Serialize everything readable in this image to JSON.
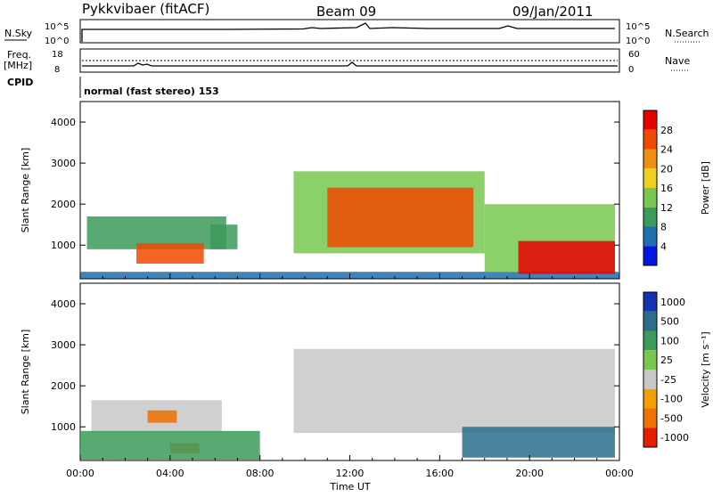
{
  "header": {
    "station": "Pykkvibaer (fitACF)",
    "beam": "Beam 09",
    "date": "09/Jan/2011"
  },
  "status_panels": {
    "nsky_label": "N.Sky",
    "nsky_ticks": [
      "10^5",
      "10^0"
    ],
    "nsearch_label": "N.Search",
    "nsearch_ticks": [
      "10^5",
      "10^0"
    ],
    "freq_label": "Freq.",
    "freq_unit": "[MHz]",
    "freq_ticks": [
      "18",
      "8"
    ],
    "nave_label": "Nave",
    "nave_ticks": [
      "60",
      "0"
    ],
    "cpid_label": "CPID",
    "cpid_value": "normal (fast stereo) 153"
  },
  "x_axis": {
    "label": "Time UT",
    "ticks": [
      "00:00",
      "04:00",
      "08:00",
      "12:00",
      "16:00",
      "20:00",
      "00:00"
    ]
  },
  "colors": {
    "power_scale": [
      "#0014e6",
      "#1e6fb0",
      "#3c9a5a",
      "#78c850",
      "#f0d020",
      "#f09010",
      "#f04a00",
      "#e60000"
    ],
    "velocity_scale": [
      "#1432b4",
      "#2a6e8c",
      "#3c9a5a",
      "#78c850",
      "#c8c8c8",
      "#f0a000",
      "#f07000",
      "#e61e00"
    ]
  },
  "chart_data": [
    {
      "type": "heatmap",
      "ylabel": "Slant Range [km]",
      "ylim": [
        180,
        4500
      ],
      "yticks": [
        "1000",
        "2000",
        "3000",
        "4000"
      ],
      "colorbar_label": "Power [dB]",
      "colorbar_ticks": [
        "4",
        "8",
        "12",
        "16",
        "20",
        "24",
        "28"
      ],
      "colorbar_range": [
        0,
        30
      ],
      "cells": [
        {
          "t0": 0.3,
          "t1": 6.5,
          "r0": 900,
          "r1": 1700,
          "value": 8
        },
        {
          "t0": 2.5,
          "t1": 5.5,
          "r0": 550,
          "r1": 1050,
          "value": 26
        },
        {
          "t0": 5.8,
          "t1": 7.0,
          "r0": 900,
          "r1": 1500,
          "value": 8
        },
        {
          "t0": 0.0,
          "t1": 24.0,
          "r0": 190,
          "r1": 350,
          "value": 6
        },
        {
          "t0": 9.5,
          "t1": 18.0,
          "r0": 800,
          "r1": 2800,
          "value": 14
        },
        {
          "t0": 11.0,
          "t1": 17.5,
          "r0": 950,
          "r1": 2400,
          "value": 26
        },
        {
          "t0": 18.0,
          "t1": 23.8,
          "r0": 350,
          "r1": 2000,
          "value": 12
        },
        {
          "t0": 19.5,
          "t1": 23.8,
          "r0": 300,
          "r1": 1100,
          "value": 27
        }
      ]
    },
    {
      "type": "heatmap",
      "ylabel": "Slant Range [km]",
      "ylim": [
        180,
        4500
      ],
      "yticks": [
        "1000",
        "2000",
        "3000",
        "4000"
      ],
      "colorbar_label": "Velocity [m s⁻¹]",
      "colorbar_ticks": [
        "1000",
        "500",
        "100",
        "25",
        "-25",
        "-100",
        "-500",
        "-1000"
      ],
      "cells": [
        {
          "t0": 0.5,
          "t1": 6.3,
          "r0": 850,
          "r1": 1650,
          "value": 0
        },
        {
          "t0": 3.0,
          "t1": 4.3,
          "r0": 1100,
          "r1": 1400,
          "value": -500
        },
        {
          "t0": 4.0,
          "t1": 5.3,
          "r0": 350,
          "r1": 600,
          "value": -500
        },
        {
          "t0": 0.0,
          "t1": 8.0,
          "r0": 200,
          "r1": 900,
          "value": 100
        },
        {
          "t0": 9.5,
          "t1": 23.8,
          "r0": 850,
          "r1": 2900,
          "value": 0
        },
        {
          "t0": 17.0,
          "t1": 23.8,
          "r0": 250,
          "r1": 1000,
          "value": 500
        }
      ]
    }
  ]
}
